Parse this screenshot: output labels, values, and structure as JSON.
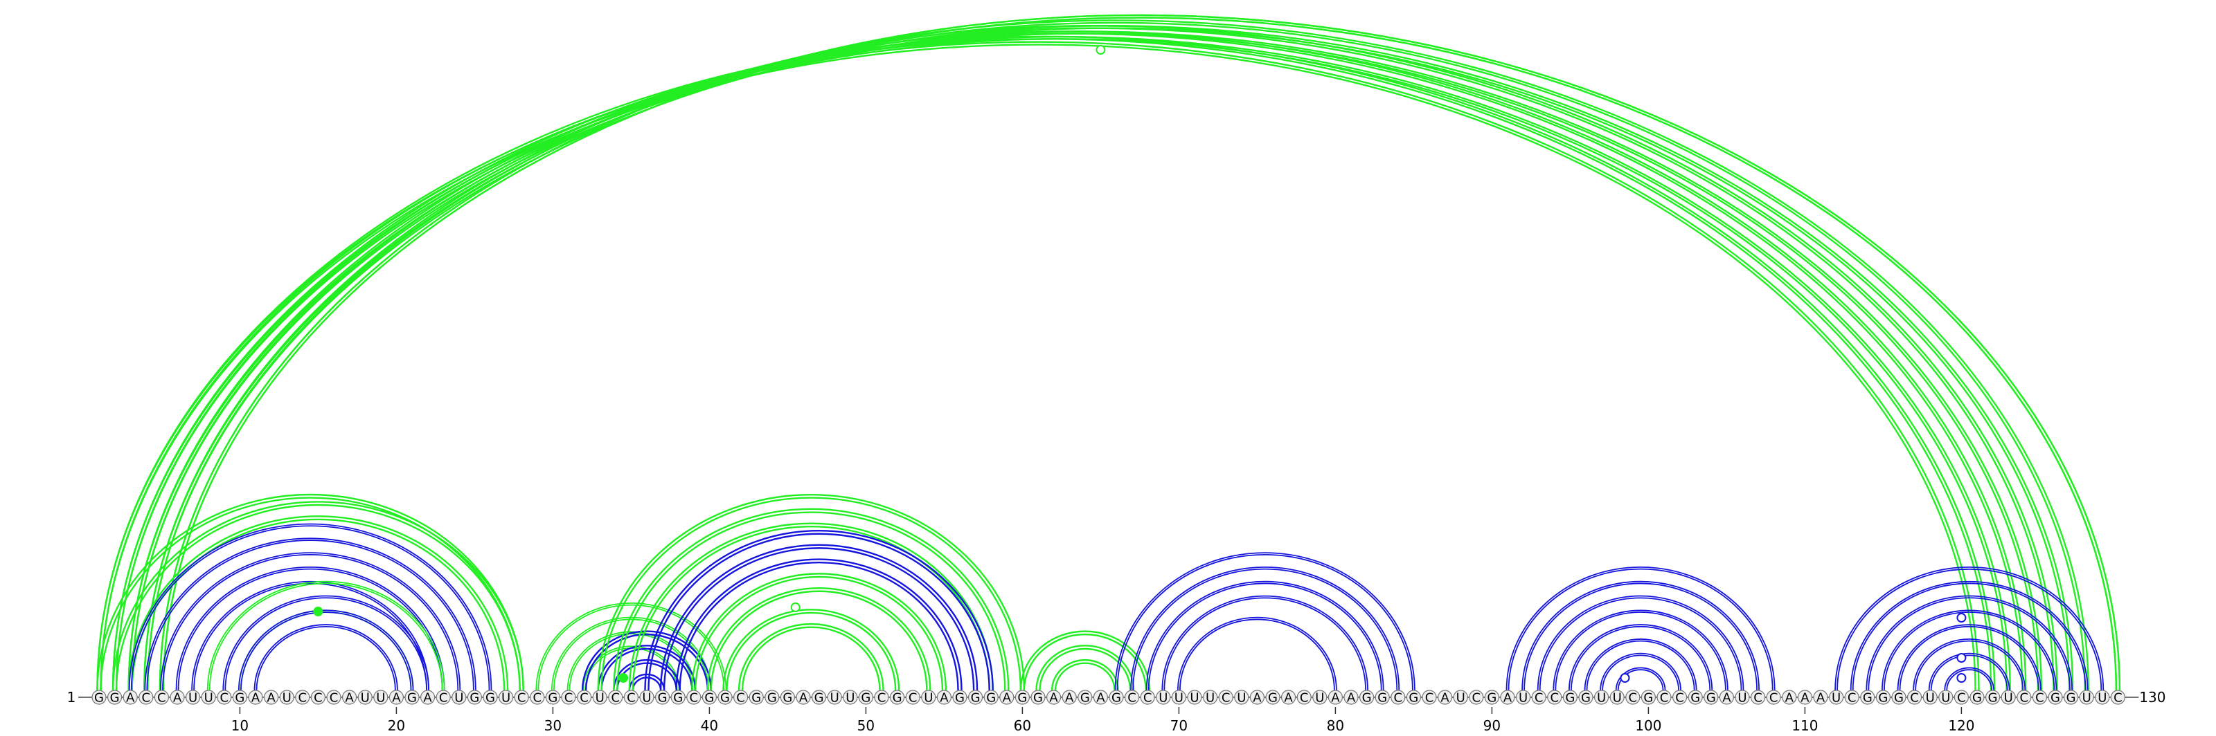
{
  "sequence": {
    "text": "GGACCAUUCGAAUCCCAUUAGACUGGUCCGCCUCCUGGCGGCGGGAGUUGCGCUAGGGAGGAAGAGCCUUUUCUAGACUAAGGCGCAUCGAUCCGGUUCGCCGGAUCCAAAUCGGGCUUCGGUCCGGUUC",
    "start_label": "1",
    "end_label": "130",
    "tick_positions": [
      10,
      20,
      30,
      40,
      50,
      60,
      70,
      80,
      90,
      100,
      110,
      120
    ],
    "tick_labels": [
      "10",
      "20",
      "30",
      "40",
      "50",
      "60",
      "70",
      "80",
      "90",
      "100",
      "110",
      "120"
    ]
  },
  "colors": {
    "green": "#22ee22",
    "blue": "#1515dd",
    "node_fill": "#eeeeee",
    "node_stroke": "#777777"
  },
  "arcs": [
    {
      "color": "green",
      "pairs": [
        [
          1,
          121
        ],
        [
          1,
          122
        ],
        [
          2,
          123
        ],
        [
          2,
          124
        ],
        [
          3,
          125
        ],
        [
          3,
          126
        ],
        [
          4,
          127
        ],
        [
          4,
          128
        ],
        [
          5,
          130
        ],
        [
          5,
          130
        ]
      ],
      "weight": 3
    },
    {
      "color": "green",
      "pairs": [
        [
          1,
          28
        ],
        [
          2,
          28
        ],
        [
          3,
          27
        ]
      ],
      "weight": 3
    },
    {
      "color": "blue",
      "pairs": [
        [
          3,
          26
        ],
        [
          4,
          25
        ],
        [
          5,
          24
        ],
        [
          6,
          23
        ],
        [
          7,
          22
        ]
      ],
      "weight": 2
    },
    {
      "color": "green",
      "pairs": [
        [
          8,
          23
        ],
        [
          10,
          21
        ]
      ],
      "weight": 2
    },
    {
      "color": "blue",
      "pairs": [
        [
          9,
          22
        ],
        [
          10,
          21
        ],
        [
          11,
          20
        ]
      ],
      "weight": 2
    },
    {
      "color": "green",
      "pairs": [
        [
          29,
          41
        ],
        [
          30,
          40
        ],
        [
          31,
          39
        ],
        [
          32,
          38
        ]
      ],
      "weight": 2
    },
    {
      "color": "blue",
      "pairs": [
        [
          32,
          40
        ],
        [
          33,
          39
        ],
        [
          34,
          38
        ],
        [
          35,
          37
        ]
      ],
      "weight": 3
    },
    {
      "color": "green",
      "pairs": [
        [
          33,
          60
        ],
        [
          34,
          59
        ],
        [
          35,
          58
        ]
      ],
      "weight": 3
    },
    {
      "color": "blue",
      "pairs": [
        [
          36,
          58
        ],
        [
          37,
          57
        ],
        [
          38,
          56
        ]
      ],
      "weight": 3
    },
    {
      "color": "green",
      "pairs": [
        [
          39,
          55
        ],
        [
          40,
          54
        ],
        [
          41,
          52
        ],
        [
          42,
          51
        ]
      ],
      "weight": 3
    },
    {
      "color": "green",
      "pairs": [
        [
          60,
          68
        ],
        [
          61,
          67
        ],
        [
          62,
          66
        ]
      ],
      "weight": 3
    },
    {
      "color": "blue",
      "pairs": [
        [
          66,
          85
        ],
        [
          67,
          84
        ],
        [
          68,
          83
        ],
        [
          69,
          82
        ],
        [
          70,
          80
        ]
      ],
      "weight": 2
    },
    {
      "color": "blue",
      "pairs": [
        [
          91,
          108
        ],
        [
          92,
          107
        ],
        [
          93,
          106
        ],
        [
          94,
          105
        ],
        [
          95,
          104
        ],
        [
          96,
          103
        ],
        [
          97,
          102
        ],
        [
          98,
          101
        ]
      ],
      "weight": 2
    },
    {
      "color": "blue",
      "pairs": [
        [
          112,
          129
        ],
        [
          113,
          128
        ],
        [
          114,
          127
        ],
        [
          115,
          126
        ],
        [
          116,
          125
        ],
        [
          117,
          124
        ],
        [
          118,
          123
        ],
        [
          119,
          122
        ]
      ],
      "weight": 2
    }
  ],
  "markers": [
    {
      "pos": 65,
      "top": true,
      "color": "green",
      "filled": false
    },
    {
      "pos": 15,
      "level": 0.82,
      "color": "green",
      "filled": true
    },
    {
      "pos": 45.5,
      "level": 0.86,
      "color": "green",
      "filled": false
    },
    {
      "pos": 34.5,
      "level": 0.25,
      "color": "green",
      "filled": true
    },
    {
      "pos": 120,
      "level": 0.78,
      "color": "blue",
      "filled": false
    },
    {
      "pos": 120,
      "level": 0.36,
      "color": "blue",
      "filled": false
    },
    {
      "pos": 120,
      "level": 0.0,
      "color": "blue",
      "filled": false
    },
    {
      "pos": 98.5,
      "level": 0.0,
      "color": "blue",
      "filled": false
    }
  ]
}
